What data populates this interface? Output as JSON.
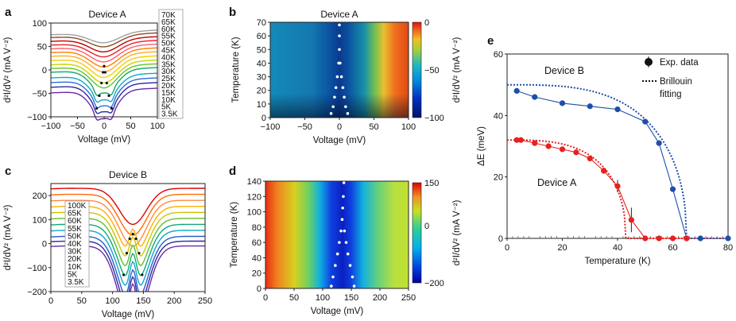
{
  "chart_data": [
    {
      "id": "a",
      "type": "line",
      "panel_label": "a",
      "title": "Device A",
      "xlabel": "Voltage (mV)",
      "ylabel": "d²I/dV² (mA V⁻²)",
      "xlim": [
        -100,
        100
      ],
      "ylim": [
        -100,
        100
      ],
      "xticks": [
        -100,
        -50,
        0,
        50,
        100
      ],
      "yticks": [
        -100,
        -50,
        0,
        50,
        100
      ],
      "series_names": [
        "70K",
        "65K",
        "60K",
        "55K",
        "50K",
        "45K",
        "40K",
        "35K",
        "30K",
        "25K",
        "20K",
        "15K",
        "10K",
        "5K",
        "3.5K"
      ],
      "series_colors": [
        "#a0a0a0",
        "#8b4b2a",
        "#c00000",
        "#e8202a",
        "#ff5c6e",
        "#ff7f00",
        "#ffad2a",
        "#f3d000",
        "#c8d400",
        "#5ec82c",
        "#14a864",
        "#13a8c8",
        "#2a6fd6",
        "#2a2aa0",
        "#6a2aa8"
      ],
      "series_offsets": [
        80,
        74,
        66,
        58,
        50,
        42,
        34,
        25,
        16,
        8,
        0,
        -12,
        -22,
        -32,
        -44
      ],
      "dip_depth_range": [
        22,
        60
      ],
      "dip_center_mV": 0,
      "ridge_x_mV": [
        -14,
        -9,
        -5,
        -2,
        0,
        2,
        5,
        9,
        14
      ],
      "ridge_y": [
        -82,
        -55,
        -28,
        -5,
        8,
        -5,
        -28,
        -55,
        -82
      ]
    },
    {
      "id": "b",
      "type": "heatmap",
      "panel_label": "b",
      "title": "Device A",
      "xlabel": "Voltage (mV)",
      "ylabel": "Temperature (K)",
      "colorbar_label": "d²I/dV² (mA V⁻²)",
      "xlim": [
        -100,
        100
      ],
      "ylim": [
        0,
        70
      ],
      "xticks": [
        -100,
        -50,
        0,
        50,
        100
      ],
      "yticks": [
        0,
        10,
        20,
        30,
        40,
        50,
        60,
        70
      ],
      "colorbar_range": [
        -100,
        0
      ],
      "colorbar_ticks": [
        0,
        -50,
        -100
      ],
      "ridge_points": [
        [
          -12,
          3
        ],
        [
          -9,
          8
        ],
        [
          -7,
          15
        ],
        [
          -5,
          22
        ],
        [
          -3,
          30
        ],
        [
          -1,
          40
        ],
        [
          0,
          50
        ],
        [
          0,
          60
        ],
        [
          0,
          68
        ],
        [
          12,
          3
        ],
        [
          9,
          8
        ],
        [
          7,
          15
        ],
        [
          5,
          22
        ],
        [
          3,
          30
        ],
        [
          1,
          40
        ]
      ]
    },
    {
      "id": "c",
      "type": "line",
      "panel_label": "c",
      "title": "Device B",
      "xlabel": "Voltage (mV)",
      "ylabel": "d²I/dV² (mA V⁻²)",
      "xlim": [
        0,
        250
      ],
      "ylim": [
        -200,
        250
      ],
      "xticks": [
        0,
        50,
        100,
        150,
        200,
        250
      ],
      "yticks": [
        -200,
        -100,
        0,
        100,
        200
      ],
      "series_names": [
        "100K",
        "65K",
        "60K",
        "55K",
        "50K",
        "40K",
        "30K",
        "20K",
        "10K",
        "5K",
        "3.5K"
      ],
      "series_colors": [
        "#e00000",
        "#ff6a00",
        "#ff8a4a",
        "#ffb000",
        "#c8c800",
        "#60c030",
        "#10a878",
        "#10a8c8",
        "#2a5ad0",
        "#2a2aa0",
        "#6a2aa8"
      ],
      "series_offsets": [
        230,
        205,
        180,
        155,
        130,
        105,
        80,
        55,
        30,
        10,
        -10
      ],
      "dip_depth_range": [
        150,
        350
      ],
      "ridge_x_mV": [
        118,
        123,
        128,
        133,
        138,
        143,
        148
      ],
      "ridge_y": [
        -130,
        -40,
        20,
        40,
        20,
        -40,
        -130
      ]
    },
    {
      "id": "d",
      "type": "heatmap",
      "panel_label": "d",
      "title": "Device B",
      "xlabel": "Voltage (mV)",
      "ylabel": "Temperature (K)",
      "colorbar_label": "d²I/dV² (mA V⁻²)",
      "xlim": [
        0,
        250
      ],
      "ylim": [
        0,
        140
      ],
      "xticks": [
        0,
        50,
        100,
        150,
        200,
        250
      ],
      "yticks": [
        0,
        20,
        40,
        60,
        80,
        100,
        120,
        140
      ],
      "colorbar_range": [
        -200,
        150
      ],
      "colorbar_ticks": [
        150,
        0,
        -200
      ],
      "ridge_points": [
        [
          115,
          3
        ],
        [
          118,
          15
        ],
        [
          122,
          30
        ],
        [
          126,
          45
        ],
        [
          129,
          60
        ],
        [
          132,
          75
        ],
        [
          134,
          90
        ],
        [
          135,
          105
        ],
        [
          136,
          120
        ],
        [
          137,
          138
        ],
        [
          155,
          3
        ],
        [
          152,
          15
        ],
        [
          148,
          30
        ],
        [
          144,
          45
        ],
        [
          141,
          60
        ],
        [
          138,
          75
        ]
      ]
    },
    {
      "id": "e",
      "type": "scatter",
      "panel_label": "e",
      "title": "",
      "xlabel": "Temperature (K)",
      "ylabel": "ΔE (meV)",
      "xlim": [
        0,
        80
      ],
      "ylim": [
        0,
        60
      ],
      "xticks": [
        0,
        20,
        40,
        60,
        80
      ],
      "yticks": [
        0,
        20,
        40,
        60
      ],
      "series": [
        {
          "name": "Device B",
          "color": "#1f4ea8",
          "x": [
            3.5,
            10,
            20,
            30,
            40,
            50,
            55,
            60,
            65,
            70,
            80
          ],
          "y": [
            48,
            46,
            44,
            43,
            42,
            38,
            31,
            16,
            0,
            0,
            0
          ]
        },
        {
          "name": "Device A",
          "color": "#e82020",
          "x": [
            3.5,
            5,
            10,
            15,
            20,
            25,
            30,
            35,
            40,
            45,
            50,
            55,
            60,
            65
          ],
          "y": [
            32,
            32,
            31,
            30,
            29,
            28,
            26,
            22,
            17,
            6,
            0,
            0,
            0,
            0
          ],
          "err": [
            0,
            0,
            0,
            0,
            0,
            0,
            0,
            1,
            2,
            4,
            0,
            0,
            0,
            0
          ]
        }
      ],
      "fits": [
        {
          "name": "Device B fit",
          "color": "#1f4ea8",
          "Tc": 65,
          "E0": 50
        },
        {
          "name": "Device A fit",
          "color": "#e82020",
          "Tc": 43,
          "E0": 32
        }
      ],
      "legend": {
        "data_label": "Exp. data",
        "fit_label_1": "Brillouin",
        "fit_label_2": "fitting",
        "placement": "top-right"
      },
      "series_labels": [
        {
          "text": "Device B",
          "color": "#1f4ea8"
        },
        {
          "text": "Device A",
          "color": "#e82020"
        }
      ]
    }
  ]
}
